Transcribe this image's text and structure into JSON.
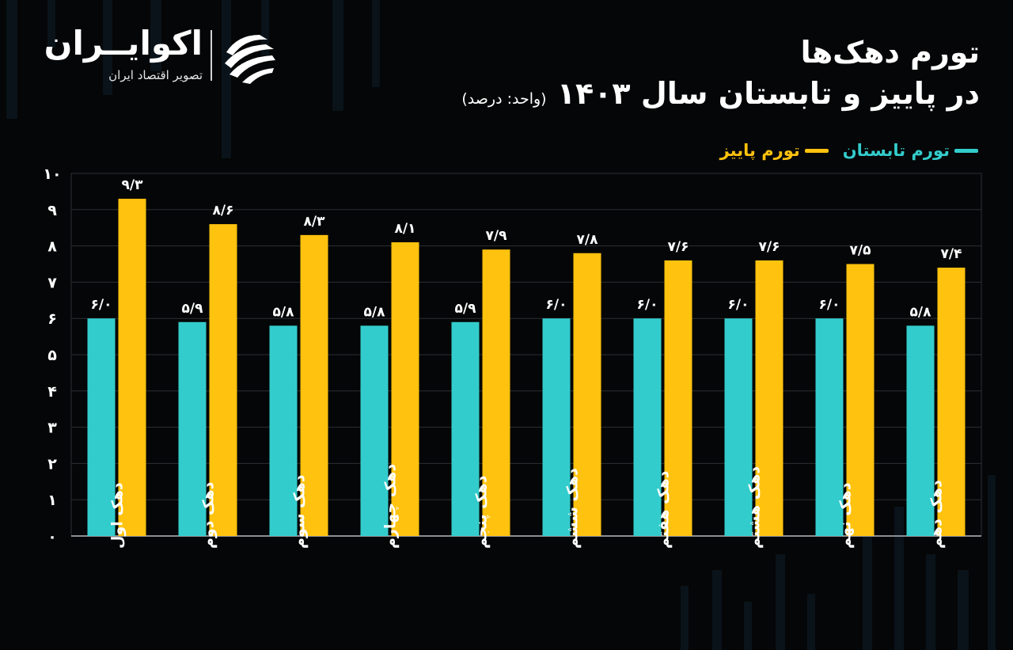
{
  "brand": {
    "name": "اکوایــران",
    "tagline": "تصویر اقتصاد ایران"
  },
  "header": {
    "title_line1": "تورم دهک‌ها",
    "title_line2": "در پاییز و تابستان سال ۱۴۰۳",
    "unit": "(واحد: درصد)"
  },
  "colors": {
    "background": "#050607",
    "summer": "#33cccc",
    "autumn": "#ffc20e",
    "grid": "#2c3033",
    "text": "#ffffff"
  },
  "chart_data": {
    "type": "bar",
    "categories": [
      "دهک اول",
      "دهک دوم",
      "دهک سوم",
      "دهک چهارم",
      "دهک پنجم",
      "دهک ششم",
      "دهک هفتم",
      "دهک هشتم",
      "دهک نهم",
      "دهک دهم"
    ],
    "series": [
      {
        "name": "تورم تابستان",
        "color": "#33cccc",
        "values": [
          6.0,
          5.9,
          5.8,
          5.8,
          5.9,
          6.0,
          6.0,
          6.0,
          6.0,
          5.8
        ],
        "labels": [
          "۶/۰",
          "۵/۹",
          "۵/۸",
          "۵/۸",
          "۵/۹",
          "۶/۰",
          "۶/۰",
          "۶/۰",
          "۶/۰",
          "۵/۸"
        ]
      },
      {
        "name": "تورم پاییز",
        "color": "#ffc20e",
        "values": [
          9.3,
          8.6,
          8.3,
          8.1,
          7.9,
          7.8,
          7.6,
          7.6,
          7.5,
          7.4
        ],
        "labels": [
          "۹/۳",
          "۸/۶",
          "۸/۳",
          "۸/۱",
          "۷/۹",
          "۷/۸",
          "۷/۶",
          "۷/۶",
          "۷/۵",
          "۷/۴"
        ]
      }
    ],
    "ylim": [
      0,
      10
    ],
    "yticks": [
      0,
      1,
      2,
      3,
      4,
      5,
      6,
      7,
      8,
      9,
      10
    ],
    "ytick_labels": [
      "۰",
      "۱",
      "۲",
      "۳",
      "۴",
      "۵",
      "۶",
      "۷",
      "۸",
      "۹",
      "۱۰"
    ],
    "grid": true,
    "legend_position": "top-right"
  }
}
